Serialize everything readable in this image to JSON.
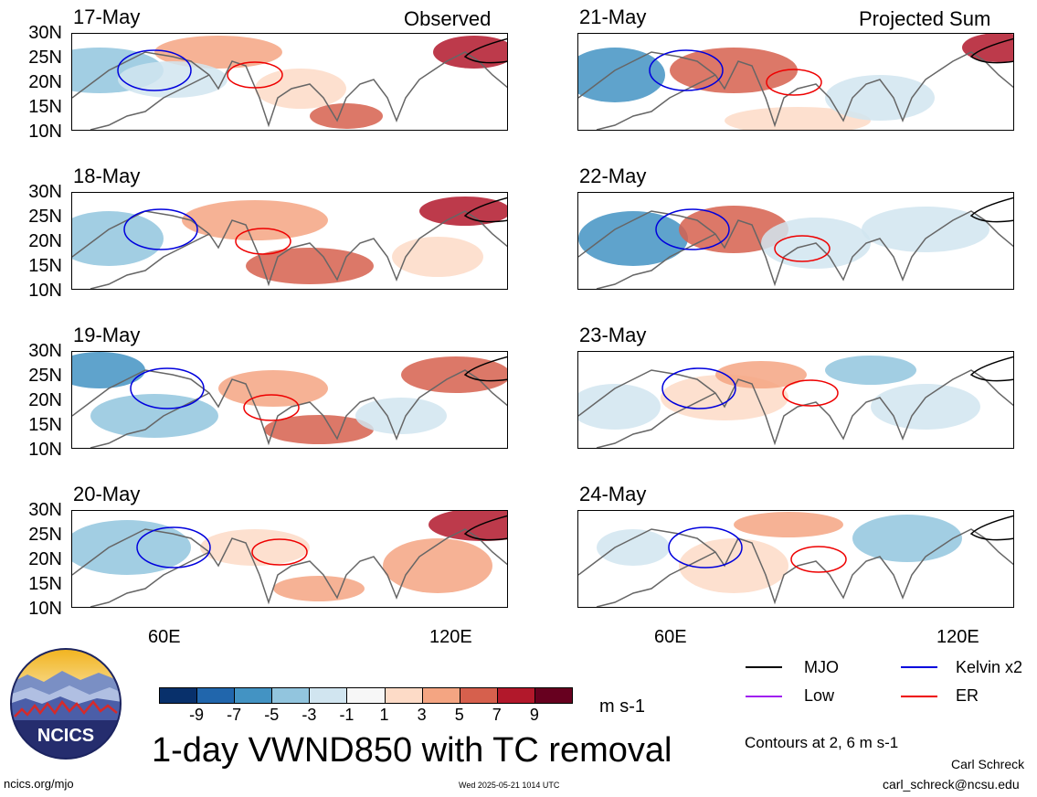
{
  "panels": {
    "left": [
      {
        "date": "17-May",
        "header": "Observed"
      },
      {
        "date": "18-May",
        "header": ""
      },
      {
        "date": "19-May",
        "header": ""
      },
      {
        "date": "20-May",
        "header": ""
      }
    ],
    "right": [
      {
        "date": "21-May",
        "header": "Projected Sum"
      },
      {
        "date": "22-May",
        "header": ""
      },
      {
        "date": "23-May",
        "header": ""
      },
      {
        "date": "24-May",
        "header": ""
      }
    ]
  },
  "lat_labels": [
    "30N",
    "25N",
    "20N",
    "15N",
    "10N"
  ],
  "lon_labels": [
    "60E",
    "120E"
  ],
  "colorbar": {
    "labels": [
      "-9",
      "-7",
      "-5",
      "-3",
      "-1",
      "1",
      "3",
      "5",
      "7",
      "9"
    ],
    "colors": [
      "#08306b",
      "#2166ac",
      "#4393c3",
      "#92c5de",
      "#d1e5f0",
      "#f7f7f7",
      "#fddbc7",
      "#f4a582",
      "#d6604d",
      "#b2182b",
      "#67001f"
    ],
    "units": "m s-1"
  },
  "legend": {
    "items": [
      {
        "label": "MJO",
        "color": "#000000"
      },
      {
        "label": "Kelvin x2",
        "color": "#0000dd"
      },
      {
        "label": "Low",
        "color": "#a020f0"
      },
      {
        "label": "ER",
        "color": "#ee0000"
      }
    ],
    "contours_note": "Contours at 2, 6 m s-1"
  },
  "title": "1-day VWND850 with TC removal",
  "footer": {
    "url": "ncics.org/mjo",
    "timestamp": "Wed 2025-05-21 1014 UTC",
    "author": "Carl Schreck",
    "email": "carl_schreck@ncsu.edu"
  },
  "logo": {
    "text": "NCICS"
  }
}
